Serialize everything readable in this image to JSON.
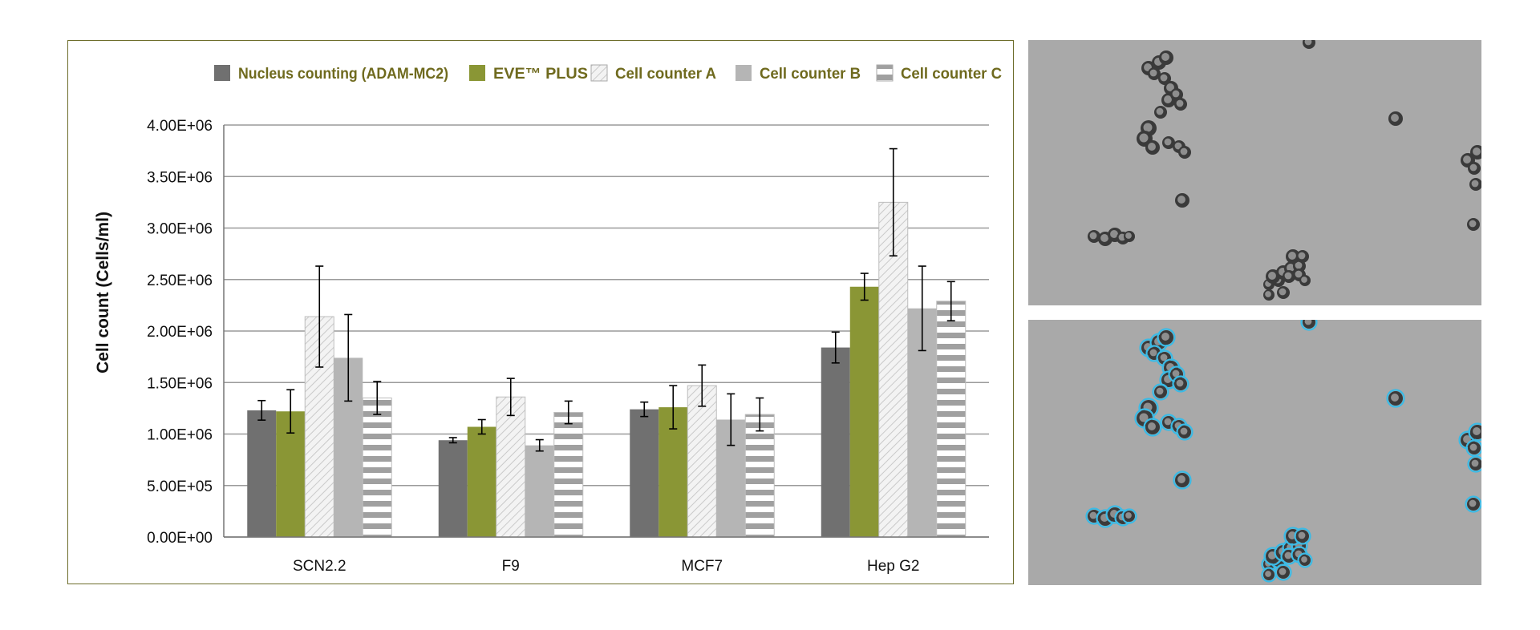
{
  "chart_data": {
    "type": "bar",
    "title": "",
    "xlabel": "",
    "ylabel": "Cell count (Cells/ml)",
    "ylim": [
      0,
      4000000
    ],
    "yticks": [
      0,
      500000,
      1000000,
      1500000,
      2000000,
      2500000,
      3000000,
      3500000,
      4000000
    ],
    "ytick_labels": [
      "0.00E+00",
      "5.00E+05",
      "1.00E+06",
      "1.50E+06",
      "2.00E+06",
      "2.50E+06",
      "3.00E+06",
      "3.50E+06",
      "4.00E+06"
    ],
    "grid": true,
    "legend_position": "top",
    "categories": [
      "SCN2.2",
      "F9",
      "MCF7",
      "Hep G2"
    ],
    "series": [
      {
        "name": "Nucleus counting (ADAM-MC2)",
        "pattern": "solid",
        "color": "#707070",
        "values": [
          1230000,
          940000,
          1240000,
          1840000
        ],
        "errors": [
          95000,
          25000,
          70000,
          150000
        ]
      },
      {
        "name": "EVE™ PLUS",
        "pattern": "solid",
        "color": "#8a9635",
        "values": [
          1220000,
          1070000,
          1260000,
          2430000
        ],
        "errors": [
          210000,
          70000,
          210000,
          130000
        ]
      },
      {
        "name": "Cell counter A",
        "pattern": "diagonal",
        "color": "#eeeeee",
        "values": [
          2140000,
          1360000,
          1470000,
          3250000
        ],
        "errors": [
          490000,
          180000,
          200000,
          520000
        ]
      },
      {
        "name": "Cell counter B",
        "pattern": "solid",
        "color": "#b5b5b5",
        "values": [
          1740000,
          890000,
          1140000,
          2220000
        ],
        "errors": [
          420000,
          55000,
          250000,
          410000
        ]
      },
      {
        "name": "Cell counter C",
        "pattern": "horizontal",
        "color": "#a0a0a0",
        "values": [
          1350000,
          1210000,
          1190000,
          2290000
        ],
        "errors": [
          160000,
          110000,
          160000,
          190000
        ]
      }
    ]
  },
  "colors": {
    "frame": "#6e6e2c",
    "legend_text": "#6f6a1e",
    "grid": "#9a9a9a",
    "micro_bg": "#a9a9a9",
    "detect_ring": "#3bbbe6"
  }
}
